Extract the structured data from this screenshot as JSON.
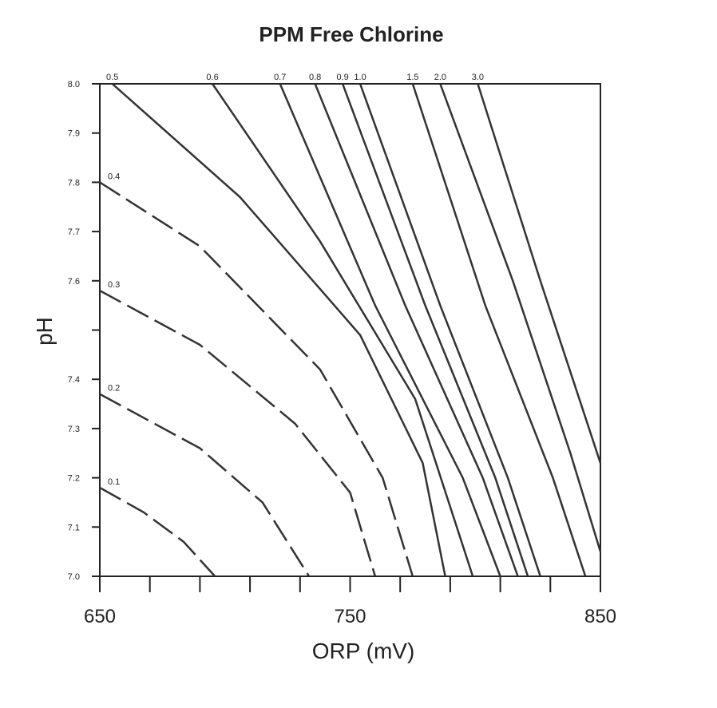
{
  "chart_data": {
    "type": "contour",
    "title": "PPM Free Chlorine",
    "x_label": "ORP (mV)",
    "y_label": "pH",
    "xlim": [
      650,
      850
    ],
    "ylim": [
      7,
      8
    ],
    "xticks": [
      650,
      {
        "value": 670,
        "label": null
      },
      {
        "value": 690,
        "label": null
      },
      {
        "value": 710,
        "label": null
      },
      {
        "value": 730,
        "label": null
      },
      750,
      {
        "value": 770,
        "label": null
      },
      {
        "value": 790,
        "label": null
      },
      {
        "value": 810,
        "label": null
      },
      {
        "value": 830,
        "label": null
      },
      850
    ],
    "yticks": [
      {
        "value": 7,
        "label": "7.0"
      },
      7.1,
      7.2,
      7.3,
      7.4,
      {
        "value": 7.5,
        "label": null
      },
      7.6,
      7.7,
      7.8,
      7.9,
      {
        "value": 8,
        "label": "8.0"
      }
    ],
    "color": "#333333",
    "series": [
      {
        "name": "0.1",
        "dashed": true,
        "x": [
          650,
          667.5,
          683.5,
          696
        ],
        "values": [
          7.18,
          7.13,
          7.07,
          7.0
        ]
      },
      {
        "name": "0.2",
        "dashed": true,
        "x": [
          650,
          690,
          715,
          733.6
        ],
        "values": [
          7.37,
          7.26,
          7.15,
          7.0
        ]
      },
      {
        "name": "0.3",
        "dashed": true,
        "x": [
          650,
          690,
          728,
          750,
          760
        ],
        "values": [
          7.58,
          7.47,
          7.31,
          7.17,
          7.0
        ]
      },
      {
        "name": "0.4",
        "dashed": true,
        "x": [
          650,
          690,
          738,
          763,
          775
        ],
        "values": [
          7.8,
          7.67,
          7.42,
          7.2,
          7.0
        ]
      },
      {
        "name": "0.5",
        "dashed": false,
        "x": [
          655,
          706,
          754,
          779,
          788
        ],
        "values": [
          8.0,
          7.77,
          7.49,
          7.23,
          7.0
        ]
      },
      {
        "name": "0.6",
        "dashed": false,
        "x": [
          695,
          738,
          776,
          799
        ],
        "values": [
          8.0,
          7.68,
          7.36,
          7.0
        ]
      },
      {
        "name": "0.7",
        "dashed": false,
        "x": [
          722,
          760,
          795,
          810
        ],
        "values": [
          8.0,
          7.55,
          7.2,
          7.0
        ]
      },
      {
        "name": "0.8",
        "dashed": false,
        "x": [
          736,
          772,
          803,
          817
        ],
        "values": [
          8.0,
          7.55,
          7.2,
          7.0
        ]
      },
      {
        "name": "0.9",
        "dashed": false,
        "x": [
          747,
          780,
          808,
          821
        ],
        "values": [
          8.0,
          7.55,
          7.2,
          7.0
        ]
      },
      {
        "name": "1.0",
        "dashed": false,
        "x": [
          754,
          786,
          813,
          826
        ],
        "values": [
          8.0,
          7.55,
          7.2,
          7.0
        ]
      },
      {
        "name": "1.5",
        "dashed": false,
        "x": [
          775,
          804,
          831,
          844
        ],
        "values": [
          8.0,
          7.55,
          7.2,
          7.0
        ]
      },
      {
        "name": "2.0",
        "dashed": false,
        "x": [
          786,
          815,
          838,
          850
        ],
        "values": [
          8.0,
          7.6,
          7.25,
          7.05
        ]
      },
      {
        "name": "3.0",
        "dashed": false,
        "x": [
          801,
          826,
          850
        ],
        "values": [
          8.0,
          7.6,
          7.23
        ]
      }
    ]
  }
}
